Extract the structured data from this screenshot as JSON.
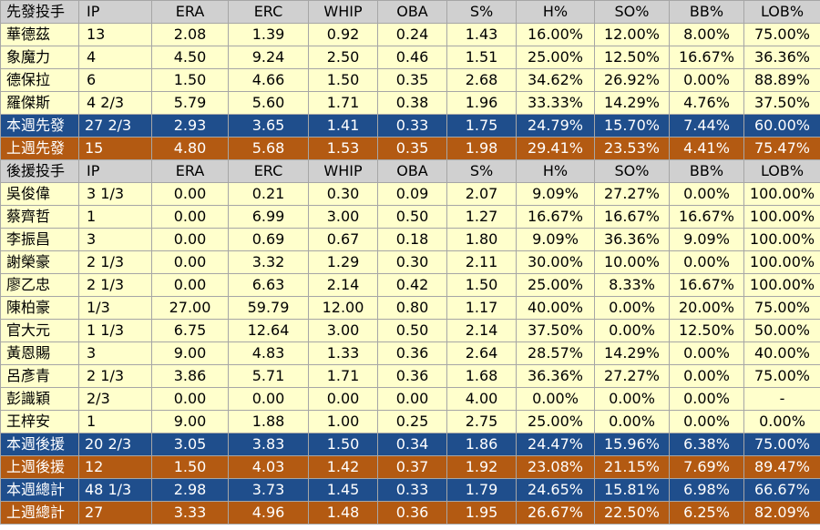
{
  "colors": {
    "header_bg": "#d0d0d0",
    "row_bg": "#ffffcc",
    "this_week_bg": "#1f4e8c",
    "last_week_bg": "#b35a12",
    "summary_text": "#ffffff",
    "border": "#a6a6a6"
  },
  "starters": {
    "header": [
      "先發投手",
      "IP",
      "ERA",
      "ERC",
      "WHIP",
      "OBA",
      "S%",
      "H%",
      "SO%",
      "BB%",
      "LOB%"
    ],
    "rows": [
      [
        "華德茲",
        "13",
        "2.08",
        "1.39",
        "0.92",
        "0.24",
        "1.43",
        "16.00%",
        "12.00%",
        "8.00%",
        "75.00%"
      ],
      [
        "象魔力",
        "4",
        "4.50",
        "9.24",
        "2.50",
        "0.46",
        "1.51",
        "25.00%",
        "12.50%",
        "16.67%",
        "36.36%"
      ],
      [
        "德保拉",
        "6",
        "1.50",
        "4.66",
        "1.50",
        "0.35",
        "2.68",
        "34.62%",
        "26.92%",
        "0.00%",
        "88.89%"
      ],
      [
        "羅傑斯",
        "4 2/3",
        "5.79",
        "5.60",
        "1.71",
        "0.38",
        "1.96",
        "33.33%",
        "14.29%",
        "4.76%",
        "37.50%"
      ]
    ],
    "this_week": [
      "本週先發",
      "27 2/3",
      "2.93",
      "3.65",
      "1.41",
      "0.33",
      "1.75",
      "24.79%",
      "15.70%",
      "7.44%",
      "60.00%"
    ],
    "last_week": [
      "上週先發",
      "15",
      "4.80",
      "5.68",
      "1.53",
      "0.35",
      "1.98",
      "29.41%",
      "23.53%",
      "4.41%",
      "75.47%"
    ]
  },
  "relievers": {
    "header": [
      "後援投手",
      "IP",
      "ERA",
      "ERC",
      "WHIP",
      "OBA",
      "S%",
      "H%",
      "SO%",
      "BB%",
      "LOB%"
    ],
    "rows": [
      [
        "吳俊偉",
        "3 1/3",
        "0.00",
        "0.21",
        "0.30",
        "0.09",
        "2.07",
        "9.09%",
        "27.27%",
        "0.00%",
        "100.00%"
      ],
      [
        "蔡齊哲",
        "1",
        "0.00",
        "6.99",
        "3.00",
        "0.50",
        "1.27",
        "16.67%",
        "16.67%",
        "16.67%",
        "100.00%"
      ],
      [
        "李振昌",
        "3",
        "0.00",
        "0.69",
        "0.67",
        "0.18",
        "1.80",
        "9.09%",
        "36.36%",
        "9.09%",
        "100.00%"
      ],
      [
        "謝榮豪",
        "2 1/3",
        "0.00",
        "3.32",
        "1.29",
        "0.30",
        "2.11",
        "30.00%",
        "10.00%",
        "0.00%",
        "100.00%"
      ],
      [
        "廖乙忠",
        "2 1/3",
        "0.00",
        "6.63",
        "2.14",
        "0.42",
        "1.50",
        "25.00%",
        "8.33%",
        "16.67%",
        "100.00%"
      ],
      [
        "陳柏豪",
        "1/3",
        "27.00",
        "59.79",
        "12.00",
        "0.80",
        "1.17",
        "40.00%",
        "0.00%",
        "20.00%",
        "75.00%"
      ],
      [
        "官大元",
        "1 1/3",
        "6.75",
        "12.64",
        "3.00",
        "0.50",
        "2.14",
        "37.50%",
        "0.00%",
        "12.50%",
        "50.00%"
      ],
      [
        "黃恩賜",
        "3",
        "9.00",
        "4.83",
        "1.33",
        "0.36",
        "2.64",
        "28.57%",
        "14.29%",
        "0.00%",
        "40.00%"
      ],
      [
        "呂彥青",
        "2 1/3",
        "3.86",
        "5.71",
        "1.71",
        "0.36",
        "1.68",
        "36.36%",
        "27.27%",
        "0.00%",
        "75.00%"
      ],
      [
        "彭識穎",
        "2/3",
        "0.00",
        "0.00",
        "0.00",
        "0.00",
        "4.00",
        "0.00%",
        "0.00%",
        "0.00%",
        "-"
      ],
      [
        "王梓安",
        "1",
        "9.00",
        "1.88",
        "1.00",
        "0.25",
        "2.75",
        "25.00%",
        "0.00%",
        "0.00%",
        "0.00%"
      ]
    ],
    "this_week": [
      "本週後援",
      "20 2/3",
      "3.05",
      "3.83",
      "1.50",
      "0.34",
      "1.86",
      "24.47%",
      "15.96%",
      "6.38%",
      "75.00%"
    ],
    "last_week": [
      "上週後援",
      "12",
      "1.50",
      "4.03",
      "1.42",
      "0.37",
      "1.92",
      "23.08%",
      "21.15%",
      "7.69%",
      "89.47%"
    ]
  },
  "totals": {
    "this_week": [
      "本週總計",
      "48 1/3",
      "2.98",
      "3.73",
      "1.45",
      "0.33",
      "1.79",
      "24.65%",
      "15.81%",
      "6.98%",
      "66.67%"
    ],
    "last_week": [
      "上週總計",
      "27",
      "3.33",
      "4.96",
      "1.48",
      "0.36",
      "1.95",
      "26.67%",
      "22.50%",
      "6.25%",
      "82.09%"
    ]
  }
}
